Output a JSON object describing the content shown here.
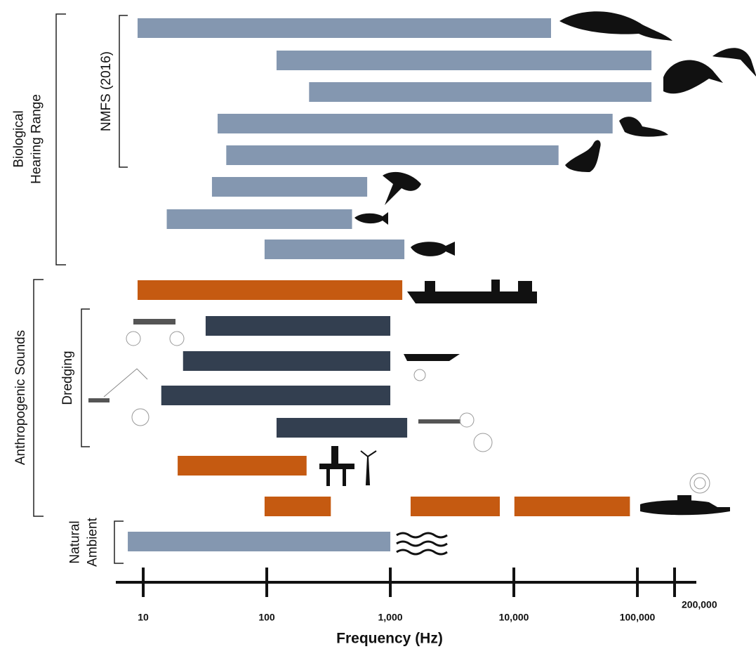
{
  "chart_data": {
    "type": "range-bar",
    "x_label": "Frequency (Hz)",
    "log_x": true,
    "xlim": [
      6,
      300000
    ],
    "xticks": [
      10,
      100,
      {
        "value": 1000,
        "label": "1,000"
      },
      {
        "value": 10000,
        "label": "10,000"
      },
      {
        "value": 100000,
        "label": "100,000"
      },
      {
        "value": 200000,
        "label": "200,000"
      }
    ],
    "groups": [
      {
        "label": [
          "Biological",
          "Hearing Range"
        ]
      },
      {
        "label": [
          "NMFS (2016)"
        ]
      },
      {
        "label": [
          "Anthropogenic Sounds"
        ]
      },
      {
        "label": [
          "Dredging"
        ]
      },
      {
        "label": [
          "Natural",
          "Ambient"
        ]
      }
    ],
    "bars": [
      {
        "range": [
          9,
          20000
        ],
        "color": "#8497b0"
      },
      {
        "range": [
          120,
          130000
        ],
        "color": "#8497b0"
      },
      {
        "range": [
          220,
          130000
        ],
        "color": "#8497b0"
      },
      {
        "range": [
          40,
          63000
        ],
        "color": "#8497b0"
      },
      {
        "range": [
          47,
          23000
        ],
        "color": "#8497b0"
      },
      {
        "range": [
          36,
          650
        ],
        "color": "#8497b0"
      },
      {
        "range": [
          15.5,
          490
        ],
        "color": "#8497b0"
      },
      {
        "range": [
          96,
          1300
        ],
        "color": "#8497b0"
      },
      {
        "range": [
          9,
          1250
        ],
        "color": "#c55a11"
      },
      {
        "range": [
          32,
          1000
        ],
        "color": "#333f50"
      },
      {
        "range": [
          21,
          1000
        ],
        "color": "#333f50"
      },
      {
        "range": [
          14,
          1000
        ],
        "color": "#333f50"
      },
      {
        "range": [
          120,
          1370
        ],
        "color": "#333f50"
      },
      {
        "range": [
          19,
          210
        ],
        "color": "#c55a11"
      },
      {
        "range": [
          96,
          330
        ],
        "color": "#c55a11"
      },
      {
        "range": [
          1460,
          7700
        ],
        "color": "#c55a11"
      },
      {
        "range": [
          10100,
          87000
        ],
        "color": "#c55a11"
      },
      {
        "range": [
          7.5,
          1000
        ],
        "color": "#8497b0"
      }
    ]
  }
}
